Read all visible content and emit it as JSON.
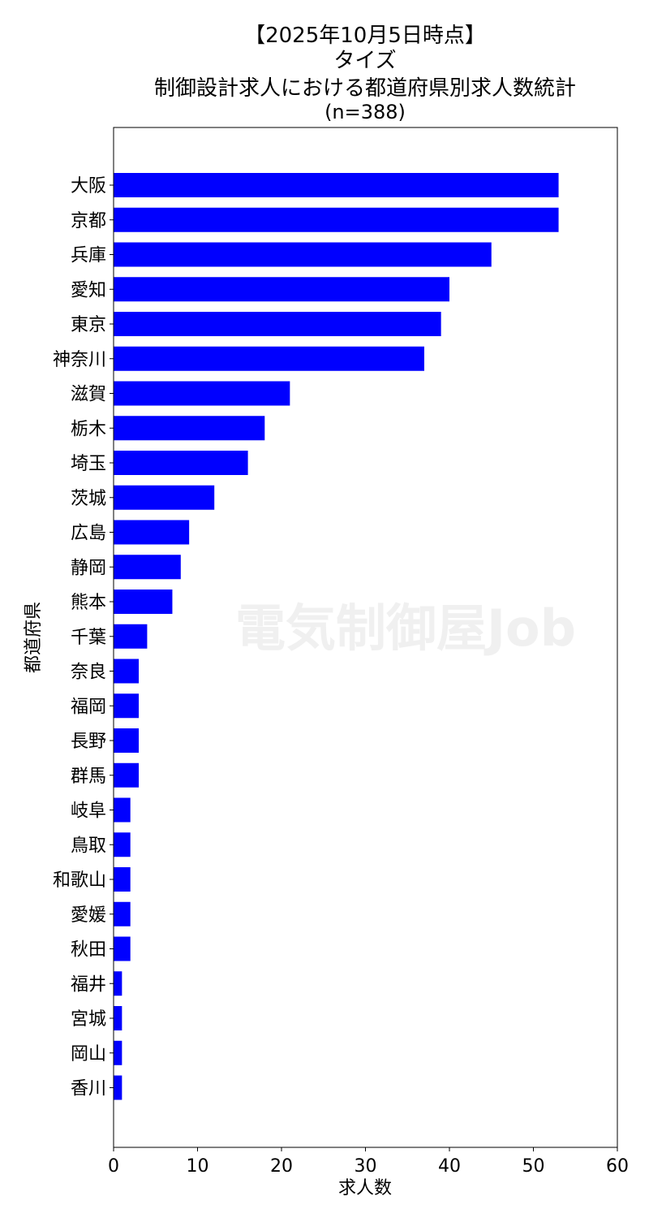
{
  "chart_data": {
    "type": "bar",
    "orientation": "horizontal",
    "title_lines": [
      "【2025年10月5日時点】",
      "タイズ",
      "制御設計求人における都道府県別求人数統計",
      "(n=388)"
    ],
    "xlabel": "求人数",
    "ylabel": "都道府県",
    "xlim": [
      0,
      60
    ],
    "xticks": [
      0,
      10,
      20,
      30,
      40,
      50,
      60
    ],
    "categories": [
      "大阪",
      "京都",
      "兵庫",
      "愛知",
      "東京",
      "神奈川",
      "滋賀",
      "栃木",
      "埼玉",
      "茨城",
      "広島",
      "静岡",
      "熊本",
      "千葉",
      "奈良",
      "福岡",
      "長野",
      "群馬",
      "岐阜",
      "鳥取",
      "和歌山",
      "愛媛",
      "秋田",
      "福井",
      "宮城",
      "岡山",
      "香川"
    ],
    "values": [
      53,
      53,
      45,
      40,
      39,
      37,
      21,
      18,
      16,
      12,
      9,
      8,
      7,
      4,
      3,
      3,
      3,
      3,
      2,
      2,
      2,
      2,
      2,
      1,
      1,
      1,
      1
    ],
    "bar_color": "#0000ff",
    "grid": false,
    "watermark": "電気制御屋Job"
  }
}
